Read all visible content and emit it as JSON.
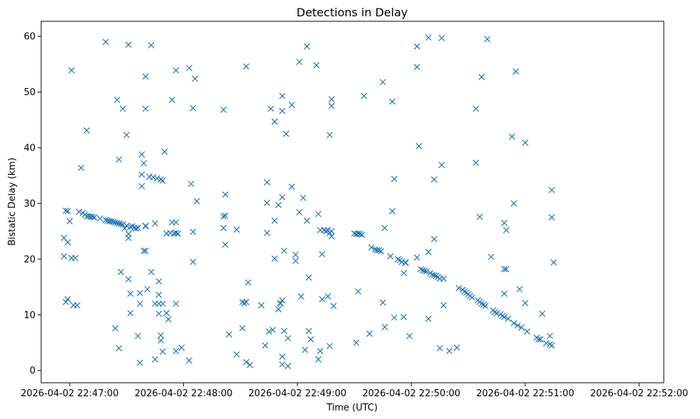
{
  "chart_data": {
    "type": "scatter",
    "title": "Detections in Delay",
    "xlabel": "Time (UTC)",
    "ylabel": "Bistatic Delay (km)",
    "xlim": [
      "2026-04-02 22:46:45",
      "2026-04-02 22:52:13"
    ],
    "ylim": [
      -2.2,
      62.7
    ],
    "grid": false,
    "marker": "x",
    "color": "#1f77b4",
    "xticks": [
      "2026-04-02 22:47:00",
      "2026-04-02 22:48:00",
      "2026-04-02 22:49:00",
      "2026-04-02 22:50:00",
      "2026-04-02 22:51:00",
      "2026-04-02 22:52:00"
    ],
    "yticks": [
      0,
      10,
      20,
      30,
      40,
      50,
      60
    ],
    "points": [
      [
        "2026-04-02 22:46:57",
        23.8
      ],
      [
        "2026-04-02 22:46:57",
        20.5
      ],
      [
        "2026-04-02 22:46:58",
        28.7
      ],
      [
        "2026-04-02 22:46:58",
        12.3
      ],
      [
        "2026-04-02 22:46:59",
        28.6
      ],
      [
        "2026-04-02 22:46:59",
        23.0
      ],
      [
        "2026-04-02 22:46:59",
        12.8
      ],
      [
        "2026-04-02 22:47:00",
        26.8
      ],
      [
        "2026-04-02 22:47:01",
        53.9
      ],
      [
        "2026-04-02 22:47:01",
        20.2
      ],
      [
        "2026-04-02 22:47:02",
        11.7
      ],
      [
        "2026-04-02 22:47:03",
        20.2
      ],
      [
        "2026-04-02 22:47:04",
        11.7
      ],
      [
        "2026-04-02 22:47:05",
        28.5
      ],
      [
        "2026-04-02 22:47:06",
        36.4
      ],
      [
        "2026-04-02 22:47:07",
        28.3
      ],
      [
        "2026-04-02 22:47:09",
        43.1
      ],
      [
        "2026-04-02 22:47:08",
        28.0
      ],
      [
        "2026-04-02 22:47:09",
        27.7
      ],
      [
        "2026-04-02 22:47:10",
        27.7
      ],
      [
        "2026-04-02 22:47:11",
        27.6
      ],
      [
        "2026-04-02 22:47:12",
        27.6
      ],
      [
        "2026-04-02 22:47:13",
        27.5
      ],
      [
        "2026-04-02 22:47:16",
        27.3
      ],
      [
        "2026-04-02 22:47:19",
        59.0
      ],
      [
        "2026-04-02 22:47:19",
        27.0
      ],
      [
        "2026-04-02 22:47:20",
        26.9
      ],
      [
        "2026-04-02 22:47:21",
        26.8
      ],
      [
        "2026-04-02 22:47:22",
        26.8
      ],
      [
        "2026-04-02 22:47:23",
        26.7
      ],
      [
        "2026-04-02 22:47:24",
        26.6
      ],
      [
        "2026-04-02 22:47:25",
        26.5
      ],
      [
        "2026-04-02 22:47:26",
        26.4
      ],
      [
        "2026-04-02 22:47:27",
        26.3
      ],
      [
        "2026-04-02 22:47:28",
        26.2
      ],
      [
        "2026-04-02 22:47:29",
        25.5
      ],
      [
        "2026-04-02 22:47:30",
        26.0
      ],
      [
        "2026-04-02 22:47:31",
        24.5
      ],
      [
        "2026-04-02 22:47:31",
        23.8
      ],
      [
        "2026-04-02 22:47:32",
        25.8
      ],
      [
        "2026-04-02 22:47:33",
        25.9
      ],
      [
        "2026-04-02 22:47:34",
        25.6
      ],
      [
        "2026-04-02 22:47:35",
        25.5
      ],
      [
        "2026-04-02 22:47:36",
        25.6
      ],
      [
        "2026-04-02 22:47:24",
        7.6
      ],
      [
        "2026-04-02 22:47:25",
        48.6
      ],
      [
        "2026-04-02 22:47:26",
        37.9
      ],
      [
        "2026-04-02 22:47:26",
        4.0
      ],
      [
        "2026-04-02 22:47:27",
        17.7
      ],
      [
        "2026-04-02 22:47:28",
        47.0
      ],
      [
        "2026-04-02 22:47:30",
        42.3
      ],
      [
        "2026-04-02 22:47:31",
        16.4
      ],
      [
        "2026-04-02 22:47:31",
        58.5
      ],
      [
        "2026-04-02 22:47:32",
        13.8
      ],
      [
        "2026-04-02 22:47:32",
        10.3
      ],
      [
        "2026-04-02 22:47:36",
        6.2
      ],
      [
        "2026-04-02 22:47:37",
        12.0
      ],
      [
        "2026-04-02 22:47:37",
        13.9
      ],
      [
        "2026-04-02 22:47:37",
        1.4
      ],
      [
        "2026-04-02 22:47:38",
        33.1
      ],
      [
        "2026-04-02 22:47:38",
        35.2
      ],
      [
        "2026-04-02 22:47:38",
        38.8
      ],
      [
        "2026-04-02 22:47:39",
        37.2
      ],
      [
        "2026-04-02 22:47:39",
        21.5
      ],
      [
        "2026-04-02 22:47:40",
        21.5
      ],
      [
        "2026-04-02 22:47:40",
        26.0
      ],
      [
        "2026-04-02 22:47:40",
        25.9
      ],
      [
        "2026-04-02 22:47:40",
        52.8
      ],
      [
        "2026-04-02 22:47:40",
        47.0
      ],
      [
        "2026-04-02 22:47:41",
        14.6
      ],
      [
        "2026-04-02 22:47:42",
        34.8
      ],
      [
        "2026-04-02 22:47:43",
        17.7
      ],
      [
        "2026-04-02 22:47:43",
        58.4
      ],
      [
        "2026-04-02 22:47:44",
        34.7
      ],
      [
        "2026-04-02 22:47:45",
        26.4
      ],
      [
        "2026-04-02 22:47:45",
        12.0
      ],
      [
        "2026-04-02 22:47:45",
        2.0
      ],
      [
        "2026-04-02 22:47:46",
        34.5
      ],
      [
        "2026-04-02 22:47:47",
        12.0
      ],
      [
        "2026-04-02 22:47:47",
        13.6
      ],
      [
        "2026-04-02 22:47:47",
        10.2
      ],
      [
        "2026-04-02 22:47:47",
        16.0
      ],
      [
        "2026-04-02 22:47:48",
        6.3
      ],
      [
        "2026-04-02 22:47:48",
        5.4
      ],
      [
        "2026-04-02 22:47:48",
        34.3
      ],
      [
        "2026-04-02 22:47:49",
        34.1
      ],
      [
        "2026-04-02 22:47:49",
        12.0
      ],
      [
        "2026-04-02 22:47:49",
        3.4
      ],
      [
        "2026-04-02 22:47:50",
        39.3
      ],
      [
        "2026-04-02 22:47:51",
        24.6
      ],
      [
        "2026-04-02 22:47:51",
        10.3
      ],
      [
        "2026-04-02 22:47:52",
        9.2
      ],
      [
        "2026-04-02 22:47:53",
        24.7
      ],
      [
        "2026-04-02 22:47:54",
        26.6
      ],
      [
        "2026-04-02 22:47:54",
        48.6
      ],
      [
        "2026-04-02 22:47:55",
        24.6
      ],
      [
        "2026-04-02 22:47:56",
        24.7
      ],
      [
        "2026-04-02 22:47:56",
        26.6
      ],
      [
        "2026-04-02 22:47:56",
        3.5
      ],
      [
        "2026-04-02 22:47:56",
        12.0
      ],
      [
        "2026-04-02 22:47:56",
        53.9
      ],
      [
        "2026-04-02 22:47:57",
        24.6
      ],
      [
        "2026-04-02 22:47:59",
        4.1
      ],
      [
        "2026-04-02 22:48:03",
        54.3
      ],
      [
        "2026-04-02 22:48:03",
        1.8
      ],
      [
        "2026-04-02 22:48:04",
        33.5
      ],
      [
        "2026-04-02 22:48:05",
        24.9
      ],
      [
        "2026-04-02 22:48:05",
        19.5
      ],
      [
        "2026-04-02 22:48:05",
        47.1
      ],
      [
        "2026-04-02 22:48:06",
        52.4
      ],
      [
        "2026-04-02 22:48:07",
        30.4
      ],
      [
        "2026-04-02 22:48:21",
        46.8
      ],
      [
        "2026-04-02 22:48:21",
        25.6
      ],
      [
        "2026-04-02 22:48:21",
        27.7
      ],
      [
        "2026-04-02 22:48:22",
        27.8
      ],
      [
        "2026-04-02 22:48:22",
        31.6
      ],
      [
        "2026-04-02 22:48:22",
        22.6
      ],
      [
        "2026-04-02 22:48:24",
        6.5
      ],
      [
        "2026-04-02 22:48:28",
        25.3
      ],
      [
        "2026-04-02 22:48:28",
        2.9
      ],
      [
        "2026-04-02 22:48:31",
        7.6
      ],
      [
        "2026-04-02 22:48:31",
        12.3
      ],
      [
        "2026-04-02 22:48:32",
        12.1
      ],
      [
        "2026-04-02 22:48:33",
        12.3
      ],
      [
        "2026-04-02 22:48:33",
        54.6
      ],
      [
        "2026-04-02 22:48:33",
        1.5
      ],
      [
        "2026-04-02 22:48:34",
        15.8
      ],
      [
        "2026-04-02 22:48:35",
        1.0
      ],
      [
        "2026-04-02 22:48:41",
        11.7
      ],
      [
        "2026-04-02 22:48:43",
        4.5
      ],
      [
        "2026-04-02 22:48:44",
        33.8
      ],
      [
        "2026-04-02 22:48:44",
        30.1
      ],
      [
        "2026-04-02 22:48:44",
        24.7
      ],
      [
        "2026-04-02 22:48:45",
        7.0
      ],
      [
        "2026-04-02 22:48:46",
        47.0
      ],
      [
        "2026-04-02 22:48:47",
        7.3
      ],
      [
        "2026-04-02 22:48:48",
        26.9
      ],
      [
        "2026-04-02 22:48:48",
        20.1
      ],
      [
        "2026-04-02 22:48:48",
        44.7
      ],
      [
        "2026-04-02 22:48:50",
        29.7
      ],
      [
        "2026-04-02 22:48:50",
        11.0
      ],
      [
        "2026-04-02 22:48:51",
        12.1
      ],
      [
        "2026-04-02 22:48:51",
        12.0
      ],
      [
        "2026-04-02 22:48:52",
        46.6
      ],
      [
        "2026-04-02 22:48:52",
        49.3
      ],
      [
        "2026-04-02 22:48:52",
        31.1
      ],
      [
        "2026-04-02 22:48:52",
        12.6
      ],
      [
        "2026-04-02 22:48:52",
        2.5
      ],
      [
        "2026-04-02 22:48:52",
        1.1
      ],
      [
        "2026-04-02 22:48:53",
        21.5
      ],
      [
        "2026-04-02 22:48:53",
        7.1
      ],
      [
        "2026-04-02 22:48:54",
        42.5
      ],
      [
        "2026-04-02 22:48:55",
        5.8
      ],
      [
        "2026-04-02 22:48:55",
        0.8
      ],
      [
        "2026-04-02 22:48:57",
        33.0
      ],
      [
        "2026-04-02 22:48:57",
        47.7
      ],
      [
        "2026-04-02 22:48:59",
        20.8
      ],
      [
        "2026-04-02 22:48:59",
        19.7
      ],
      [
        "2026-04-02 22:49:01",
        55.4
      ],
      [
        "2026-04-02 22:49:01",
        28.4
      ],
      [
        "2026-04-02 22:49:02",
        13.3
      ],
      [
        "2026-04-02 22:49:03",
        31.0
      ],
      [
        "2026-04-02 22:49:04",
        3.7
      ],
      [
        "2026-04-02 22:49:05",
        26.9
      ],
      [
        "2026-04-02 22:49:05",
        58.2
      ],
      [
        "2026-04-02 22:49:06",
        16.7
      ],
      [
        "2026-04-02 22:49:06",
        7.1
      ],
      [
        "2026-04-02 22:49:07",
        5.6
      ],
      [
        "2026-04-02 22:49:10",
        54.8
      ],
      [
        "2026-04-02 22:49:11",
        28.1
      ],
      [
        "2026-04-02 22:49:11",
        2.0
      ],
      [
        "2026-04-02 22:49:12",
        25.2
      ],
      [
        "2026-04-02 22:49:12",
        3.5
      ],
      [
        "2026-04-02 22:49:13",
        20.9
      ],
      [
        "2026-04-02 22:49:13",
        12.8
      ],
      [
        "2026-04-02 22:49:14",
        25.2
      ],
      [
        "2026-04-02 22:49:15",
        25.0
      ],
      [
        "2026-04-02 22:49:16",
        25.2
      ],
      [
        "2026-04-02 22:49:16",
        13.3
      ],
      [
        "2026-04-02 22:49:17",
        24.7
      ],
      [
        "2026-04-02 22:49:17",
        42.3
      ],
      [
        "2026-04-02 22:49:17",
        4.4
      ],
      [
        "2026-04-02 22:49:18",
        48.7
      ],
      [
        "2026-04-02 22:49:18",
        47.5
      ],
      [
        "2026-04-02 22:49:18",
        25.0
      ],
      [
        "2026-04-02 22:49:18",
        24.1
      ],
      [
        "2026-04-02 22:49:19",
        11.6
      ],
      [
        "2026-04-02 22:49:30",
        24.6
      ],
      [
        "2026-04-02 22:49:31",
        24.5
      ],
      [
        "2026-04-02 22:49:31",
        5.0
      ],
      [
        "2026-04-02 22:49:32",
        24.6
      ],
      [
        "2026-04-02 22:49:32",
        14.2
      ],
      [
        "2026-04-02 22:49:33",
        24.5
      ],
      [
        "2026-04-02 22:49:34",
        24.4
      ],
      [
        "2026-04-02 22:49:35",
        49.3
      ],
      [
        "2026-04-02 22:49:38",
        6.6
      ],
      [
        "2026-04-02 22:49:39",
        22.1
      ],
      [
        "2026-04-02 22:49:41",
        21.7
      ],
      [
        "2026-04-02 22:49:42",
        21.6
      ],
      [
        "2026-04-02 22:49:43",
        21.6
      ],
      [
        "2026-04-02 22:49:44",
        21.4
      ],
      [
        "2026-04-02 22:49:45",
        51.8
      ],
      [
        "2026-04-02 22:49:45",
        12.2
      ],
      [
        "2026-04-02 22:49:46",
        25.6
      ],
      [
        "2026-04-02 22:49:46",
        7.8
      ],
      [
        "2026-04-02 22:49:49",
        20.5
      ],
      [
        "2026-04-02 22:49:50",
        48.3
      ],
      [
        "2026-04-02 22:49:50",
        28.6
      ],
      [
        "2026-04-02 22:49:51",
        34.4
      ],
      [
        "2026-04-02 22:49:51",
        9.5
      ],
      [
        "2026-04-02 22:49:53",
        20.0
      ],
      [
        "2026-04-02 22:49:54",
        19.8
      ],
      [
        "2026-04-02 22:49:55",
        19.5
      ],
      [
        "2026-04-02 22:49:56",
        17.5
      ],
      [
        "2026-04-02 22:49:56",
        9.6
      ],
      [
        "2026-04-02 22:49:57",
        19.4
      ],
      [
        "2026-04-02 22:49:57",
        19.3
      ],
      [
        "2026-04-02 22:49:59",
        6.2
      ],
      [
        "2026-04-02 22:50:03",
        58.2
      ],
      [
        "2026-04-02 22:50:03",
        54.5
      ],
      [
        "2026-04-02 22:50:03",
        20.3
      ],
      [
        "2026-04-02 22:50:04",
        40.3
      ],
      [
        "2026-04-02 22:50:05",
        18.2
      ],
      [
        "2026-04-02 22:50:06",
        18.0
      ],
      [
        "2026-04-02 22:50:07",
        17.9
      ],
      [
        "2026-04-02 22:50:08",
        17.8
      ],
      [
        "2026-04-02 22:50:09",
        59.8
      ],
      [
        "2026-04-02 22:50:09",
        21.3
      ],
      [
        "2026-04-02 22:50:09",
        9.3
      ],
      [
        "2026-04-02 22:50:10",
        17.5
      ],
      [
        "2026-04-02 22:50:11",
        17.2
      ],
      [
        "2026-04-02 22:50:12",
        23.6
      ],
      [
        "2026-04-02 22:50:12",
        34.3
      ],
      [
        "2026-04-02 22:50:12",
        17.1
      ],
      [
        "2026-04-02 22:50:13",
        17.0
      ],
      [
        "2026-04-02 22:50:14",
        16.8
      ],
      [
        "2026-04-02 22:50:15",
        16.5
      ],
      [
        "2026-04-02 22:50:15",
        4.0
      ],
      [
        "2026-04-02 22:50:16",
        59.7
      ],
      [
        "2026-04-02 22:50:16",
        36.9
      ],
      [
        "2026-04-02 22:50:17",
        16.5
      ],
      [
        "2026-04-02 22:50:17",
        11.7
      ],
      [
        "2026-04-02 22:50:20",
        3.5
      ],
      [
        "2026-04-02 22:50:24",
        4.1
      ],
      [
        "2026-04-02 22:50:25",
        14.8
      ],
      [
        "2026-04-02 22:50:27",
        14.5
      ],
      [
        "2026-04-02 22:50:28",
        14.2
      ],
      [
        "2026-04-02 22:50:29",
        14.0
      ],
      [
        "2026-04-02 22:50:30",
        13.7
      ],
      [
        "2026-04-02 22:50:31",
        13.4
      ],
      [
        "2026-04-02 22:50:32",
        13.1
      ],
      [
        "2026-04-02 22:50:34",
        47.0
      ],
      [
        "2026-04-02 22:50:34",
        37.3
      ],
      [
        "2026-04-02 22:50:35",
        12.6
      ],
      [
        "2026-04-02 22:50:36",
        27.6
      ],
      [
        "2026-04-02 22:50:36",
        12.3
      ],
      [
        "2026-04-02 22:50:37",
        12.0
      ],
      [
        "2026-04-02 22:50:37",
        52.7
      ],
      [
        "2026-04-02 22:50:38",
        11.8
      ],
      [
        "2026-04-02 22:50:39",
        11.6
      ],
      [
        "2026-04-02 22:50:40",
        59.5
      ],
      [
        "2026-04-02 22:50:42",
        20.4
      ],
      [
        "2026-04-02 22:50:43",
        10.8
      ],
      [
        "2026-04-02 22:50:44",
        10.5
      ],
      [
        "2026-04-02 22:50:45",
        10.3
      ],
      [
        "2026-04-02 22:50:47",
        10.1
      ],
      [
        "2026-04-02 22:50:48",
        9.8
      ],
      [
        "2026-04-02 22:50:49",
        9.6
      ],
      [
        "2026-04-02 22:50:49",
        26.5
      ],
      [
        "2026-04-02 22:50:49",
        18.2
      ],
      [
        "2026-04-02 22:50:49",
        13.8
      ],
      [
        "2026-04-02 22:50:50",
        25.2
      ],
      [
        "2026-04-02 22:50:50",
        18.2
      ],
      [
        "2026-04-02 22:50:51",
        9.3
      ],
      [
        "2026-04-02 22:50:53",
        42.0
      ],
      [
        "2026-04-02 22:50:54",
        30.0
      ],
      [
        "2026-04-02 22:50:54",
        8.5
      ],
      [
        "2026-04-02 22:50:55",
        53.7
      ],
      [
        "2026-04-02 22:50:56",
        8.1
      ],
      [
        "2026-04-02 22:50:57",
        14.6
      ],
      [
        "2026-04-02 22:50:58",
        7.7
      ],
      [
        "2026-04-02 22:51:00",
        40.9
      ],
      [
        "2026-04-02 22:51:00",
        12.1
      ],
      [
        "2026-04-02 22:51:01",
        7.0
      ],
      [
        "2026-04-02 22:51:06",
        5.9
      ],
      [
        "2026-04-02 22:51:07",
        5.6
      ],
      [
        "2026-04-02 22:51:08",
        5.6
      ],
      [
        "2026-04-02 22:51:09",
        10.2
      ],
      [
        "2026-04-02 22:51:11",
        4.9
      ],
      [
        "2026-04-02 22:51:13",
        6.2
      ],
      [
        "2026-04-02 22:51:13",
        4.7
      ],
      [
        "2026-04-02 22:51:14",
        32.4
      ],
      [
        "2026-04-02 22:51:14",
        27.5
      ],
      [
        "2026-04-02 22:51:14",
        4.5
      ],
      [
        "2026-04-02 22:51:15",
        19.4
      ]
    ]
  }
}
